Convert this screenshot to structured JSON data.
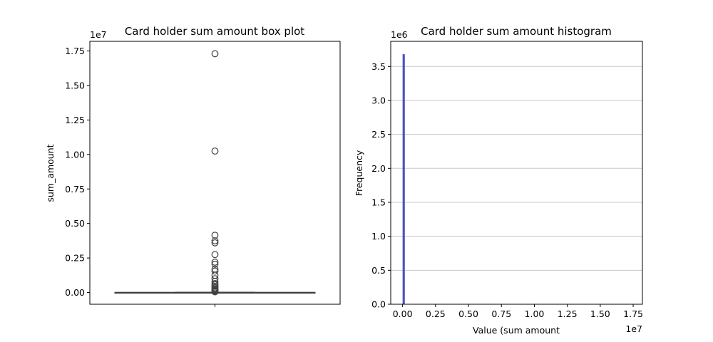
{
  "figure": {
    "background": "#ffffff"
  },
  "chart_data": [
    {
      "type": "box",
      "title": "Card holder sum amount box plot",
      "xlabel": "",
      "ylabel": "sum_amount",
      "y_offset_label": "1e7",
      "ylim": [
        -0.085,
        1.82
      ],
      "y_ticks": [
        0.0,
        0.25,
        0.5,
        0.75,
        1.0,
        1.25,
        1.5,
        1.75
      ],
      "y_tick_labels": [
        "0.00",
        "0.25",
        "0.50",
        "0.75",
        "1.00",
        "1.25",
        "1.50",
        "1.75"
      ],
      "x_ticks": [
        ""
      ],
      "grid": false,
      "box": {
        "min": 0.0,
        "q1": 0.0,
        "median": 0.0,
        "q3": 0.0005,
        "max": 0.002,
        "units": "1e7"
      },
      "outliers": [
        1.73,
        1.025,
        0.415,
        0.375,
        0.36,
        0.275,
        0.22,
        0.205,
        0.17,
        0.155,
        0.125,
        0.1,
        0.08,
        0.065,
        0.055,
        0.045,
        0.035,
        0.028,
        0.02,
        0.014,
        0.009,
        0.005
      ],
      "colors": {
        "box_edge": "#3f3f3f",
        "outlier_edge": "#3f3f3f"
      }
    },
    {
      "type": "histogram",
      "title": "Card holder sum amount histogram",
      "xlabel": "Value (sum amount",
      "ylabel": "Frequency",
      "x_offset_label": "1e7",
      "y_offset_label": "1e6",
      "xlim": [
        -0.09,
        1.82
      ],
      "ylim": [
        0,
        3.87
      ],
      "x_ticks": [
        0.0,
        0.25,
        0.5,
        0.75,
        1.0,
        1.25,
        1.5,
        1.75
      ],
      "x_tick_labels": [
        "0.00",
        "0.25",
        "0.50",
        "0.75",
        "1.00",
        "1.25",
        "1.50",
        "1.75"
      ],
      "y_ticks": [
        0.0,
        0.5,
        1.0,
        1.5,
        2.0,
        2.5,
        3.0,
        3.5
      ],
      "y_tick_labels": [
        "0.0",
        "0.5",
        "1.0",
        "1.5",
        "2.0",
        "2.5",
        "3.0",
        "3.5"
      ],
      "grid": "y",
      "bins": [
        {
          "x0": 0.0,
          "x1": 0.017,
          "count": 3.68
        }
      ],
      "colors": {
        "bar": "#3b3fb5",
        "grid": "#c8c8c8"
      }
    }
  ]
}
